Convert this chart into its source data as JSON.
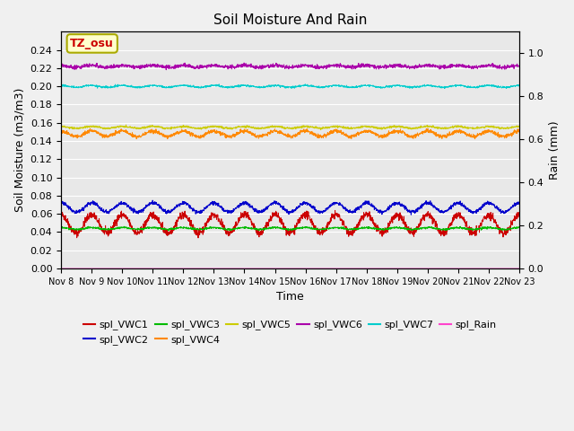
{
  "title": "Soil Moisture And Rain",
  "xlabel": "Time",
  "ylabel_left": "Soil Moisture (m3/m3)",
  "ylabel_right": "Rain (mm)",
  "ylim_left": [
    0.0,
    0.26
  ],
  "ylim_right": [
    0.0,
    1.1
  ],
  "xtick_labels": [
    "Nov 8",
    "Nov 9",
    "Nov 10",
    "Nov 11",
    "Nov 12",
    "Nov 13",
    "Nov 14",
    "Nov 15",
    "Nov 16",
    "Nov 17",
    "Nov 18",
    "Nov 19",
    "Nov 20",
    "Nov 21",
    "Nov 22",
    "Nov 23"
  ],
  "yticks_left": [
    0.0,
    0.02,
    0.04,
    0.06,
    0.08,
    0.1,
    0.12,
    0.14,
    0.16,
    0.18,
    0.2,
    0.22,
    0.24
  ],
  "yticks_right": [
    0.0,
    0.2,
    0.4,
    0.6,
    0.8,
    1.0
  ],
  "annotation_text": "TZ_osu",
  "annotation_color": "#cc0000",
  "annotation_bg": "#ffffcc",
  "annotation_border": "#aaaa00",
  "series": {
    "spl_VWC1": {
      "color": "#cc0000",
      "mean": 0.049,
      "daily_amp": 0.01,
      "noise": 0.002
    },
    "spl_VWC2": {
      "color": "#0000cc",
      "mean": 0.067,
      "daily_amp": 0.005,
      "noise": 0.001
    },
    "spl_VWC3": {
      "color": "#00bb00",
      "mean": 0.044,
      "daily_amp": 0.001,
      "noise": 0.0005
    },
    "spl_VWC4": {
      "color": "#ff8800",
      "mean": 0.148,
      "daily_amp": 0.003,
      "noise": 0.001
    },
    "spl_VWC5": {
      "color": "#cccc00",
      "mean": 0.155,
      "daily_amp": 0.001,
      "noise": 0.0005
    },
    "spl_VWC6": {
      "color": "#aa00aa",
      "mean": 0.222,
      "daily_amp": 0.001,
      "noise": 0.001
    },
    "spl_VWC7": {
      "color": "#00cccc",
      "mean": 0.2,
      "daily_amp": 0.001,
      "noise": 0.0005
    },
    "spl_Rain": {
      "color": "#ff44cc",
      "mean": 0.0,
      "daily_amp": 0.0,
      "noise": 0.0
    }
  },
  "legend_entries_row1": [
    {
      "label": "spl_VWC1",
      "color": "#cc0000"
    },
    {
      "label": "spl_VWC2",
      "color": "#0000cc"
    },
    {
      "label": "spl_VWC3",
      "color": "#00bb00"
    },
    {
      "label": "spl_VWC4",
      "color": "#ff8800"
    },
    {
      "label": "spl_VWC5",
      "color": "#cccc00"
    },
    {
      "label": "spl_VWC6",
      "color": "#aa00aa"
    }
  ],
  "legend_entries_row2": [
    {
      "label": "spl_VWC7",
      "color": "#00cccc"
    },
    {
      "label": "spl_Rain",
      "color": "#ff44cc"
    }
  ],
  "bg_color": "#e8e8e8",
  "fig_bg": "#f0f0f0",
  "n_days": 15,
  "points_per_day": 144
}
